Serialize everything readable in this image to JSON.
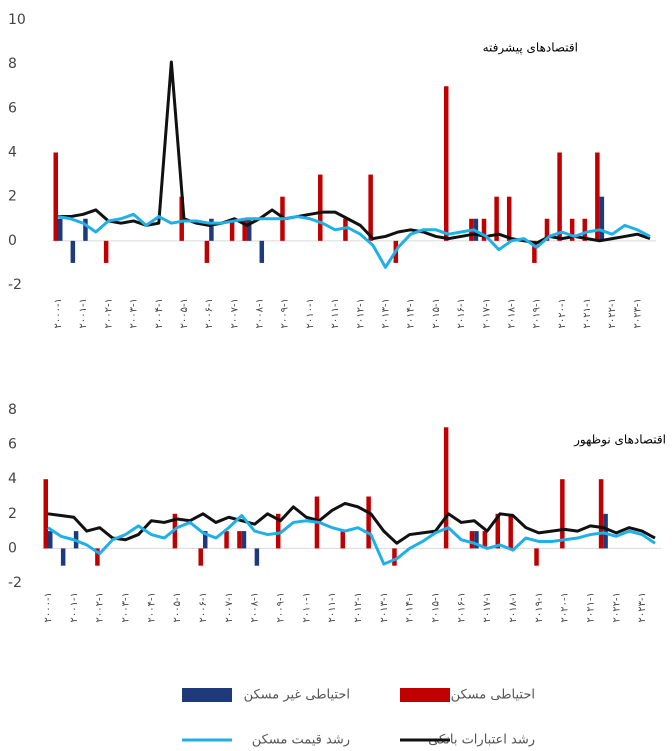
{
  "chart_data": [
    {
      "type": "combo",
      "title": "اقتصادهای پیشرفته",
      "categories": [
        "۲۰۰۰-۱",
        null,
        "۲۰۰۱-۱",
        null,
        "۲۰۰۲-۱",
        null,
        "۲۰۰۳-۱",
        null,
        "۲۰۰۴-۱",
        null,
        "۲۰۰۵-۱",
        null,
        "۲۰۰۶-۱",
        null,
        "۲۰۰۷-۱",
        null,
        "۲۰۰۸-۱",
        null,
        "۲۰۰۹-۱",
        null,
        "۲۰۱۰-۱",
        null,
        "۲۰۱۱-۱",
        null,
        "۲۰۱۲-۱",
        null,
        "۲۰۱۳-۱",
        null,
        "۲۰۱۴-۱",
        null,
        "۲۰۱۵-۱",
        null,
        "۲۰۱۶-۱",
        null,
        "۲۰۱۷-۱",
        null,
        "۲۰۱۸-۱",
        null,
        "۲۰۱۹-۱",
        null,
        "۲۰۲۰-۱",
        null,
        "۲۰۲۱-۱",
        null,
        "۲۰۲۲-۱",
        null,
        "۲۰۲۳-۱",
        null
      ],
      "ylim": [
        -2,
        10
      ],
      "yticks": [
        -2,
        0,
        2,
        4,
        6,
        8,
        10
      ],
      "series": [
        {
          "name": "احتیاطی مسکن",
          "kind": "bar",
          "color": "#c00000",
          "values": [
            4,
            0,
            0,
            0,
            -1,
            0,
            0,
            0,
            0,
            0,
            2,
            0,
            -1,
            0,
            1,
            1,
            0,
            0,
            2,
            0,
            0,
            3,
            0,
            1,
            0,
            3,
            0,
            -1,
            0,
            0,
            0,
            7,
            0,
            1,
            1,
            2,
            2,
            0,
            -1,
            1,
            4,
            1,
            1,
            4,
            0,
            0,
            0,
            0
          ]
        },
        {
          "name": "احتیاطی غیر مسکن",
          "kind": "bar",
          "color": "#1f3a7a",
          "values": [
            1,
            -1,
            1,
            0,
            0,
            0,
            0,
            0,
            0,
            0,
            0,
            0,
            1,
            0,
            0,
            1,
            -1,
            0,
            0,
            0,
            0,
            0,
            0,
            0,
            0,
            0,
            0,
            0,
            0,
            0,
            0,
            0,
            0,
            1,
            0,
            0,
            0,
            0,
            0,
            0,
            0,
            0,
            0,
            2,
            0,
            0,
            0,
            0
          ]
        },
        {
          "name": "رشد اعتبارات بانکی",
          "kind": "line",
          "color": "#111111",
          "values": [
            1.1,
            1.1,
            1.2,
            1.4,
            0.9,
            0.8,
            0.9,
            0.7,
            0.8,
            8.1,
            1.0,
            0.8,
            0.7,
            0.8,
            1.0,
            0.7,
            1.0,
            1.4,
            1.0,
            1.1,
            1.2,
            1.3,
            1.3,
            1.0,
            0.7,
            0.1,
            0.2,
            0.4,
            0.5,
            0.4,
            0.2,
            0.1,
            0.2,
            0.3,
            0.2,
            0.3,
            0.1,
            0.0,
            -0.1,
            0.2,
            0.1,
            0.2,
            0.1,
            0.0,
            0.1,
            0.2,
            0.3,
            0.1
          ]
        },
        {
          "name": "رشد قیمت مسکن",
          "kind": "line",
          "color": "#1fb0e8",
          "values": [
            1.1,
            1.0,
            0.8,
            0.4,
            0.9,
            1.0,
            1.2,
            0.7,
            1.1,
            0.8,
            0.9,
            0.9,
            0.8,
            0.8,
            0.9,
            1.0,
            1.0,
            1.0,
            1.0,
            1.1,
            1.0,
            0.8,
            0.5,
            0.6,
            0.3,
            -0.2,
            -1.2,
            -0.3,
            0.3,
            0.5,
            0.5,
            0.3,
            0.4,
            0.5,
            0.2,
            -0.4,
            0.0,
            0.1,
            -0.3,
            0.2,
            0.4,
            0.2,
            0.4,
            0.5,
            0.3,
            0.7,
            0.5,
            0.2
          ]
        }
      ]
    },
    {
      "type": "combo",
      "title": "اقتصادهای نوظهور",
      "categories": [
        "۲۰۰۰-۱",
        null,
        "۲۰۰۱-۱",
        null,
        "۲۰۰۲-۱",
        null,
        "۲۰۰۳-۱",
        null,
        "۲۰۰۴-۱",
        null,
        "۲۰۰۵-۱",
        null,
        "۲۰۰۶-۱",
        null,
        "۲۰۰۷-۱",
        null,
        "۲۰۰۸-۱",
        null,
        "۲۰۰۹-۱",
        null,
        "۲۰۱۰-۱",
        null,
        "۲۰۱۱-۱",
        null,
        "۲۰۱۲-۱",
        null,
        "۲۰۱۳-۱",
        null,
        "۲۰۱۴-۱",
        null,
        "۲۰۱۵-۱",
        null,
        "۲۰۱۶-۱",
        null,
        "۲۰۱۷-۱",
        null,
        "۲۰۱۸-۱",
        null,
        "۲۰۱۹-۱",
        null,
        "۲۰۲۰-۱",
        null,
        "۲۰۲۱-۱",
        null,
        "۲۰۲۲-۱",
        null,
        "۲۰۲۳-۱",
        null
      ],
      "ylim": [
        -2,
        8
      ],
      "yticks": [
        -2,
        0,
        2,
        4,
        6,
        8
      ],
      "series": [
        {
          "kind": "bar",
          "color": "#c00000",
          "values": [
            4,
            0,
            0,
            0,
            -1,
            0,
            0,
            0,
            0,
            0,
            2,
            0,
            -1,
            0,
            1,
            1,
            0,
            0,
            2,
            0,
            0,
            3,
            0,
            1,
            0,
            3,
            0,
            -1,
            0,
            0,
            0,
            7,
            0,
            1,
            1,
            2,
            2,
            0,
            -1,
            0,
            4,
            0,
            0,
            4,
            0,
            0,
            0,
            0
          ]
        },
        {
          "kind": "bar",
          "color": "#1f3a7a",
          "values": [
            1,
            -1,
            1,
            0,
            0,
            0,
            0,
            0,
            0,
            0,
            0,
            0,
            1,
            0,
            0,
            1,
            -1,
            0,
            0,
            0,
            0,
            0,
            0,
            0,
            0,
            0,
            0,
            0,
            0,
            0,
            0,
            0,
            0,
            1,
            0,
            0,
            0,
            0,
            0,
            0,
            0,
            0,
            0,
            2,
            0,
            0,
            0,
            0
          ]
        },
        {
          "kind": "line",
          "color": "#111111",
          "values": [
            2.0,
            1.9,
            1.8,
            1.0,
            1.2,
            0.6,
            0.5,
            0.8,
            1.6,
            1.5,
            1.7,
            1.6,
            2.0,
            1.5,
            1.8,
            1.6,
            1.4,
            2.0,
            1.6,
            2.4,
            1.8,
            1.6,
            2.2,
            2.6,
            2.4,
            2.0,
            1.0,
            0.3,
            0.8,
            0.9,
            1.0,
            2.0,
            1.5,
            1.6,
            1.0,
            2.0,
            1.9,
            1.2,
            0.9,
            1.0,
            1.1,
            1.0,
            1.3,
            1.2,
            0.9,
            1.2,
            1.0,
            0.6
          ]
        },
        {
          "kind": "line",
          "color": "#1fb0e8",
          "values": [
            1.2,
            0.7,
            0.5,
            0.2,
            -0.3,
            0.5,
            0.8,
            1.3,
            0.8,
            0.6,
            1.2,
            1.5,
            0.9,
            0.6,
            1.2,
            1.9,
            1.0,
            0.8,
            0.9,
            1.5,
            1.6,
            1.5,
            1.2,
            1.0,
            1.2,
            0.8,
            -0.9,
            -0.6,
            0.0,
            0.4,
            0.9,
            1.2,
            0.5,
            0.3,
            0.0,
            0.2,
            -0.1,
            0.6,
            0.4,
            0.4,
            0.5,
            0.6,
            0.8,
            0.9,
            0.7,
            1.0,
            0.8,
            0.3
          ]
        }
      ]
    }
  ]
}
